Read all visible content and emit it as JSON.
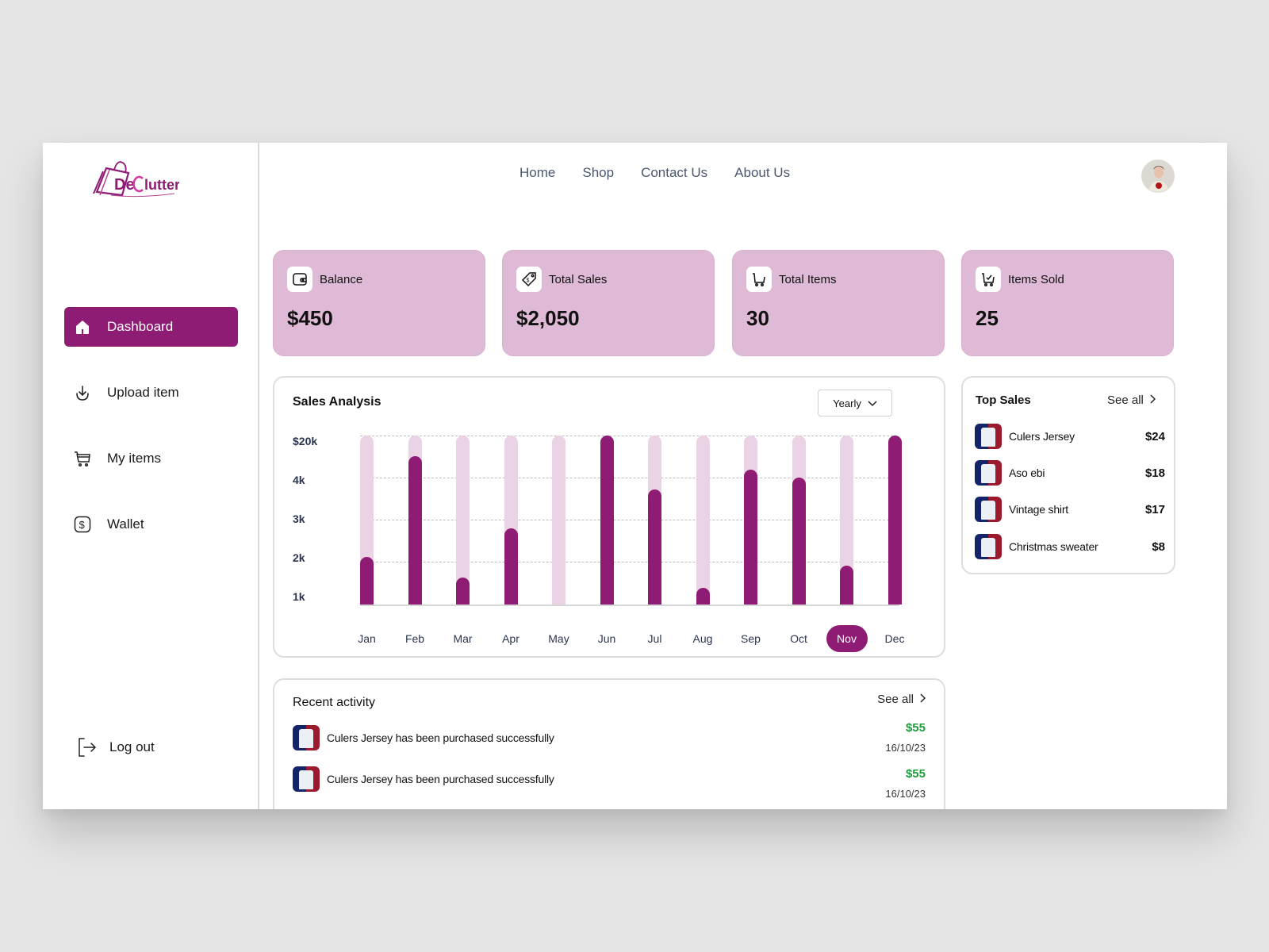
{
  "brand": {
    "name": "DeClutter",
    "accent": "#8e1c75",
    "card_bg": "#dfbad6"
  },
  "sidebar": {
    "items": [
      {
        "label": "Dashboard",
        "icon": "home-icon",
        "active": true
      },
      {
        "label": "Upload item",
        "icon": "download-icon",
        "active": false
      },
      {
        "label": "My items",
        "icon": "cart-icon",
        "active": false
      },
      {
        "label": "Wallet",
        "icon": "dollar-icon",
        "active": false
      }
    ],
    "logout": {
      "label": "Log out",
      "icon": "logout-icon"
    }
  },
  "topnav": {
    "links": [
      "Home",
      "Shop",
      "Contact Us",
      "About Us"
    ]
  },
  "stats": [
    {
      "label": "Balance",
      "value": "$450",
      "icon": "wallet-icon"
    },
    {
      "label": "Total Sales",
      "value": "$2,050",
      "icon": "price-tag-icon"
    },
    {
      "label": "Total Items",
      "value": "30",
      "icon": "cart-icon"
    },
    {
      "label": "Items Sold",
      "value": "25",
      "icon": "cart-check-icon"
    }
  ],
  "sales_analysis": {
    "title": "Sales Analysis",
    "period": "Yearly",
    "selected_month": "Nov"
  },
  "chart_data": {
    "type": "bar",
    "title": "Sales Analysis",
    "categories": [
      "Jan",
      "Feb",
      "Mar",
      "Apr",
      "May",
      "Jun",
      "Jul",
      "Aug",
      "Sep",
      "Oct",
      "Nov",
      "Dec"
    ],
    "y_tick_labels": [
      "$20k",
      "4k",
      "3k",
      "2k",
      "1k"
    ],
    "values_fraction_of_max": [
      0.28,
      0.88,
      0.16,
      0.45,
      0.0,
      1.0,
      0.68,
      0.1,
      0.8,
      0.75,
      0.23,
      1.0
    ],
    "values_approx": [
      1900,
      4700,
      1300,
      2700,
      800,
      20000,
      3600,
      1000,
      4400,
      4200,
      1700,
      20000
    ],
    "background_track": true,
    "xlabel": "",
    "ylabel": "",
    "grid": "dashed horizontal",
    "highlighted_category": "Nov"
  },
  "top_sales": {
    "title": "Top Sales",
    "see_all": "See all",
    "items": [
      {
        "name": "Culers Jersey",
        "price": "$24"
      },
      {
        "name": "Aso ebi",
        "price": "$18"
      },
      {
        "name": "Vintage shirt",
        "price": "$17"
      },
      {
        "name": "Christmas sweater",
        "price": "$8"
      }
    ]
  },
  "recent_activity": {
    "title": "Recent activity",
    "see_all": "See all",
    "items": [
      {
        "text": "Culers Jersey has been purchased successfully",
        "amount": "$55",
        "date": "16/10/23"
      },
      {
        "text": "Culers Jersey has been purchased successfully",
        "amount": "$55",
        "date": "16/10/23"
      }
    ]
  }
}
